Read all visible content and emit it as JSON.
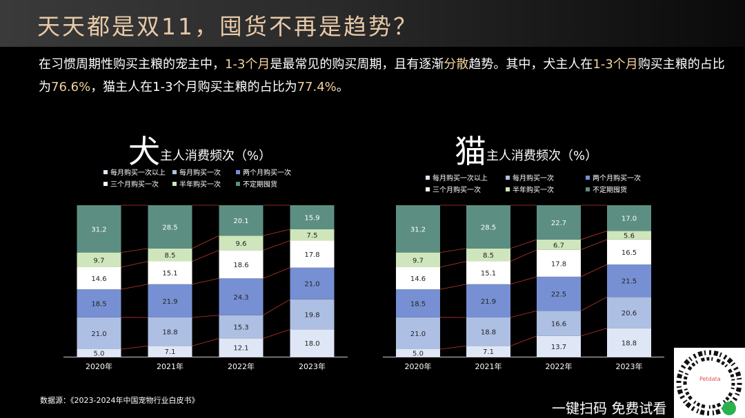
{
  "page_title": "天天都是双11，囤货不再是趋势？",
  "intro": {
    "p1": "在习惯周期性购买主粮的宠主中，",
    "hl1": "1-3个月",
    "p2": "是最常见的购买周期，且有逐渐",
    "hl2": "分散",
    "p3": "趋势。其中，犬主人在",
    "hl3": "1-3个月",
    "p4": "购买主粮的占比为",
    "hl4": "76.6%",
    "p5": "，猫主人在1-3个月购买主粮的占比为",
    "hl5": "77.4%",
    "p6": "。"
  },
  "source": "数据源：《2023-2024年中国宠物行业白皮书》",
  "cta": "一键扫码 免费试看",
  "qr_label": "Petdata",
  "chart_data": [
    {
      "type": "bar",
      "stacked": true,
      "title_big": "犬",
      "title_small": "主人消费频次（%）",
      "categories": [
        "2020年",
        "2021年",
        "2022年",
        "2023年"
      ],
      "series": [
        {
          "name": "每月购买一次以上",
          "color": "#dfe6f6",
          "values": [
            5.0,
            7.1,
            12.1,
            18.0
          ]
        },
        {
          "name": "每月购买一次",
          "color": "#aebfe4",
          "values": [
            21.0,
            18.8,
            15.3,
            19.8
          ]
        },
        {
          "name": "两个月购买一次",
          "color": "#7790d3",
          "values": [
            18.5,
            21.9,
            24.3,
            21.0
          ]
        },
        {
          "name": "三个月购买一次",
          "color": "#ffffff",
          "values": [
            14.6,
            15.1,
            18.6,
            17.8
          ]
        },
        {
          "name": "半年购买一次",
          "color": "#cfe6bc",
          "values": [
            9.7,
            8.5,
            9.6,
            7.5
          ]
        },
        {
          "name": "不定期囤货",
          "color": "#5d8e82",
          "values": [
            31.2,
            28.5,
            20.1,
            15.9
          ]
        }
      ]
    },
    {
      "type": "bar",
      "stacked": true,
      "title_big": "猫",
      "title_small": "主人消费频次（%）",
      "categories": [
        "2020年",
        "2021年",
        "2022年",
        "2023年"
      ],
      "series": [
        {
          "name": "每月购买一次以上",
          "color": "#dfe6f6",
          "values": [
            5.0,
            7.1,
            13.7,
            18.8
          ]
        },
        {
          "name": "每月购买一次",
          "color": "#aebfe4",
          "values": [
            21.0,
            18.8,
            16.6,
            20.6
          ]
        },
        {
          "name": "两个月购买一次",
          "color": "#7790d3",
          "values": [
            18.5,
            21.9,
            22.5,
            21.5
          ]
        },
        {
          "name": "三个月购买一次",
          "color": "#ffffff",
          "values": [
            14.6,
            15.1,
            17.8,
            16.5
          ]
        },
        {
          "name": "半年购买一次",
          "color": "#cfe6bc",
          "values": [
            9.7,
            8.5,
            6.7,
            5.6
          ]
        },
        {
          "name": "不定期囤货",
          "color": "#5d8e82",
          "values": [
            31.2,
            28.5,
            22.7,
            17.0
          ]
        }
      ]
    }
  ]
}
